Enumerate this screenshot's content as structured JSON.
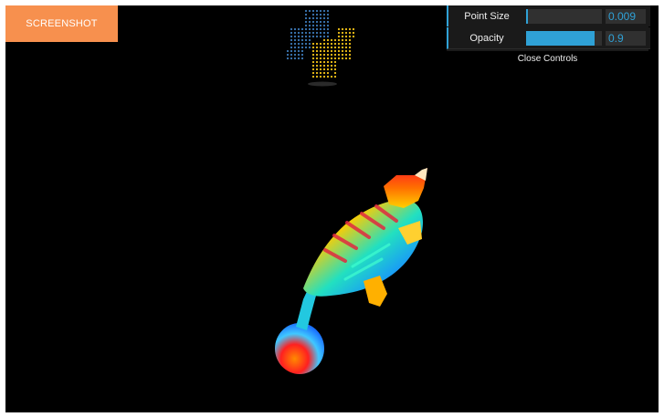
{
  "toolbar": {
    "screenshot_label": "SCREENSHOT"
  },
  "controls": {
    "point_size": {
      "label": "Point Size",
      "value": "0.009",
      "level": 0.009
    },
    "opacity": {
      "label": "Opacity",
      "value": "0.9",
      "level": 0.9
    },
    "close_label": "Close Controls"
  },
  "colors": {
    "accent": "#2fa1d6",
    "screenshot_button": "#f7904e",
    "background": "#000000",
    "python_blue": "#3d7ab8",
    "python_yellow": "#f5c518"
  },
  "icons": {
    "logo": "python-logo-icon"
  }
}
